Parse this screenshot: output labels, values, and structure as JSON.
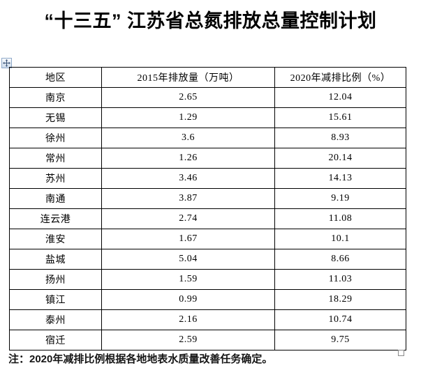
{
  "title": "“十三五” 江苏省总氮排放总量控制计划",
  "table": {
    "columns": [
      "地区",
      "2015年排放量（万吨）",
      "2020年减排比例（%）"
    ],
    "rows": [
      {
        "region": "南京",
        "emission_2015": "2.65",
        "reduction_2020": "12.04"
      },
      {
        "region": "无锡",
        "emission_2015": "1.29",
        "reduction_2020": "15.61"
      },
      {
        "region": "徐州",
        "emission_2015": "3.6",
        "reduction_2020": "8.93"
      },
      {
        "region": "常州",
        "emission_2015": "1.26",
        "reduction_2020": "20.14"
      },
      {
        "region": "苏州",
        "emission_2015": "3.46",
        "reduction_2020": "14.13"
      },
      {
        "region": "南通",
        "emission_2015": "3.87",
        "reduction_2020": "9.19"
      },
      {
        "region": "连云港",
        "emission_2015": "2.74",
        "reduction_2020": "11.08"
      },
      {
        "region": "淮安",
        "emission_2015": "1.67",
        "reduction_2020": "10.1"
      },
      {
        "region": "盐城",
        "emission_2015": "5.04",
        "reduction_2020": "8.66"
      },
      {
        "region": "扬州",
        "emission_2015": "1.59",
        "reduction_2020": "11.03"
      },
      {
        "region": "镇江",
        "emission_2015": "0.99",
        "reduction_2020": "18.29"
      },
      {
        "region": "泰州",
        "emission_2015": "2.16",
        "reduction_2020": "10.74"
      },
      {
        "region": "宿迁",
        "emission_2015": "2.59",
        "reduction_2020": "9.75"
      }
    ]
  },
  "note": "注：2020年减排比例根据各地地表水质量改善任务确定。",
  "icons": {
    "move_handle": "move-icon",
    "resize_handle": "resize-square"
  },
  "colors": {
    "border": "#000000",
    "handle_border": "#8fa9c9",
    "handle_arrow": "#41597a",
    "text": "#000000"
  }
}
